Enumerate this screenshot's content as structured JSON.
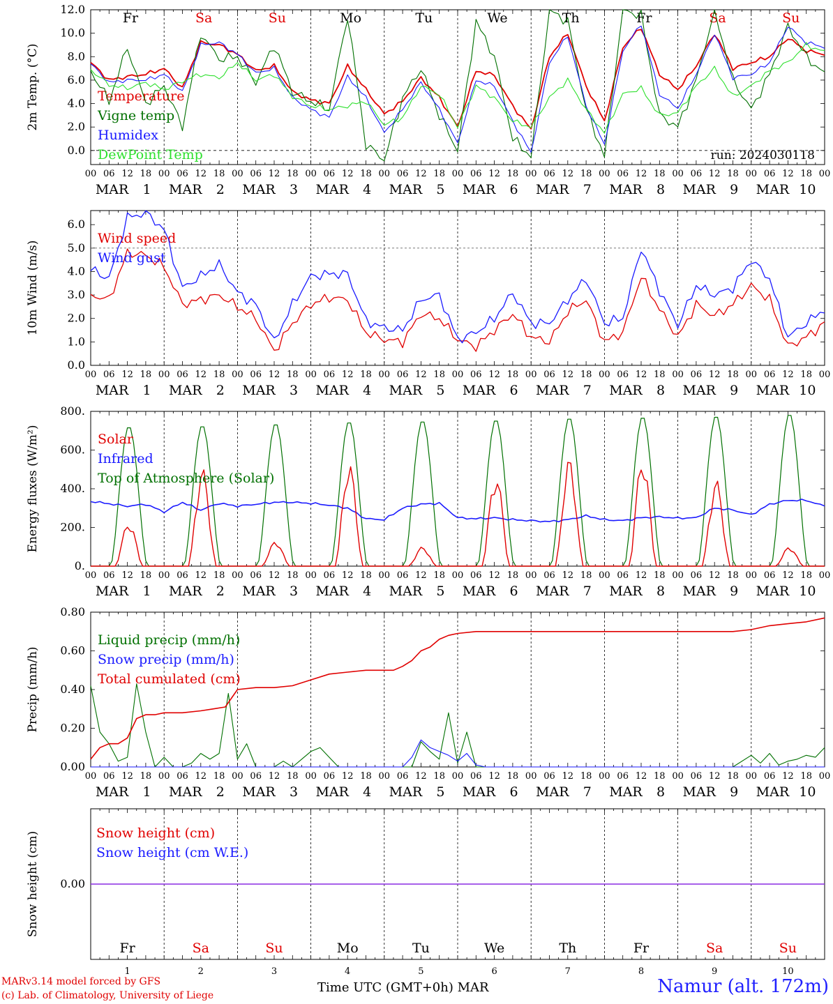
{
  "chart_data": [
    {
      "type": "line",
      "ylabel": "2m Temp. (°C)",
      "ylim": [
        -1.2,
        12.0
      ],
      "yticks": [
        "12.0",
        "10.0",
        "8.0",
        "6.0",
        "4.0",
        "2.0",
        "0.0"
      ],
      "grid": "vertical dashed day lines",
      "legend": "top-left",
      "annotation": "run: 2024030118",
      "day_labels": [
        {
          "label": "Fr",
          "color": "#000000"
        },
        {
          "label": "Sa",
          "color": "#e00000"
        },
        {
          "label": "Su",
          "color": "#e00000"
        },
        {
          "label": "Mo",
          "color": "#000000"
        },
        {
          "label": "Tu",
          "color": "#000000"
        },
        {
          "label": "We",
          "color": "#000000"
        },
        {
          "label": "Th",
          "color": "#000000"
        },
        {
          "label": "Fr",
          "color": "#000000"
        },
        {
          "label": "Sa",
          "color": "#e00000"
        },
        {
          "label": "Su",
          "color": "#e00000"
        }
      ],
      "x_hours": [
        0,
        6,
        12,
        18,
        24,
        30,
        36,
        42,
        48,
        54,
        60,
        66,
        72,
        78,
        84,
        90,
        96,
        102,
        108,
        114,
        120,
        126,
        132,
        138,
        144,
        150,
        156,
        162,
        168,
        174,
        180,
        186,
        192,
        198,
        204,
        210,
        216,
        222,
        228,
        234,
        240
      ],
      "series": [
        {
          "name": "Temperature",
          "color": "#e00000",
          "values": [
            7.5,
            6.0,
            6.3,
            6.5,
            7.0,
            5.3,
            9.2,
            9.0,
            8.2,
            6.8,
            7.2,
            5.0,
            4.3,
            4.0,
            7.2,
            5.2,
            3.1,
            4.2,
            6.2,
            4.5,
            2.0,
            6.8,
            6.4,
            3.8,
            1.8,
            8.0,
            10.0,
            5.5,
            2.5,
            8.8,
            10.5,
            6.5,
            5.2,
            7.2,
            10.0,
            7.0,
            7.5,
            8.0,
            9.6,
            8.5,
            8.2
          ]
        },
        {
          "name": "Vigne temp",
          "color": "#007000",
          "values": [
            6.8,
            4.2,
            8.8,
            4.0,
            5.5,
            2.0,
            10.0,
            7.8,
            8.0,
            5.8,
            9.0,
            5.0,
            4.2,
            3.5,
            11.5,
            0.5,
            -0.8,
            4.5,
            7.0,
            3.0,
            0.0,
            11.0,
            8.0,
            1.0,
            -0.5,
            12.0,
            11.0,
            3.5,
            -0.5,
            12.0,
            11.5,
            3.0,
            2.0,
            6.0,
            12.0,
            6.0,
            3.5,
            6.5,
            10.6,
            8.0,
            6.5
          ]
        },
        {
          "name": "Humidex",
          "color": "#1a1aff",
          "values": [
            7.4,
            5.8,
            6.0,
            6.0,
            6.5,
            5.0,
            9.0,
            9.2,
            8.2,
            6.6,
            7.0,
            4.5,
            3.5,
            2.8,
            6.3,
            4.5,
            1.5,
            3.5,
            5.8,
            3.5,
            0.6,
            6.0,
            5.5,
            2.5,
            -0.2,
            7.5,
            9.8,
            3.8,
            0.5,
            8.5,
            10.8,
            4.8,
            3.6,
            6.5,
            10.0,
            6.2,
            6.5,
            7.5,
            10.6,
            9.2,
            8.8
          ]
        },
        {
          "name": "DewPoint Temp",
          "color": "#2ee02e",
          "values": [
            6.9,
            5.6,
            5.3,
            5.8,
            5.2,
            5.9,
            6.5,
            6.2,
            7.5,
            6.0,
            6.5,
            4.6,
            3.8,
            3.5,
            3.8,
            4.2,
            2.2,
            2.8,
            5.5,
            4.8,
            2.0,
            5.5,
            4.5,
            2.5,
            2.0,
            4.5,
            6.0,
            3.5,
            1.5,
            4.8,
            5.3,
            3.0,
            3.2,
            5.5,
            7.0,
            4.6,
            5.5,
            6.8,
            7.5,
            9.0,
            8.4
          ]
        }
      ]
    },
    {
      "type": "line",
      "ylabel": "10m Wind (m/s)",
      "ylim": [
        0.0,
        6.6
      ],
      "yticks": [
        "6.0",
        "5.0",
        "4.0",
        "3.0",
        "2.0",
        "1.0",
        "0.0"
      ],
      "legend": "top-left",
      "reference_line": 5.0,
      "x_hours": [
        0,
        6,
        12,
        18,
        24,
        30,
        36,
        42,
        48,
        54,
        60,
        66,
        72,
        78,
        84,
        90,
        96,
        102,
        108,
        114,
        120,
        126,
        132,
        138,
        144,
        150,
        156,
        162,
        168,
        174,
        180,
        186,
        192,
        198,
        204,
        210,
        216,
        222,
        228,
        234,
        240
      ],
      "series": [
        {
          "name": "Wind speed",
          "color": "#e00000",
          "values": [
            3.0,
            2.8,
            4.8,
            4.7,
            4.2,
            2.6,
            2.8,
            3.0,
            2.5,
            2.0,
            0.6,
            1.8,
            2.6,
            2.9,
            2.8,
            1.4,
            1.1,
            1.0,
            2.2,
            2.0,
            1.1,
            0.8,
            1.5,
            2.2,
            1.2,
            1.0,
            2.3,
            2.8,
            1.0,
            1.4,
            3.8,
            2.4,
            1.2,
            2.6,
            2.1,
            2.6,
            3.4,
            2.8,
            0.8,
            1.2,
            1.8
          ]
        },
        {
          "name": "Wind gust",
          "color": "#1a1aff",
          "values": [
            4.1,
            3.7,
            6.3,
            6.5,
            5.8,
            3.3,
            3.8,
            4.3,
            3.1,
            2.6,
            1.0,
            2.6,
            3.8,
            3.9,
            3.9,
            1.9,
            1.6,
            1.5,
            2.8,
            3.0,
            1.1,
            1.4,
            2.0,
            3.1,
            1.8,
            1.8,
            2.8,
            3.7,
            1.8,
            2.0,
            5.0,
            3.2,
            1.7,
            3.4,
            3.0,
            3.3,
            4.5,
            3.7,
            1.2,
            1.8,
            2.4
          ]
        }
      ]
    },
    {
      "type": "line",
      "ylabel": "Energy fluxes (W/m²)",
      "ylim": [
        0,
        800
      ],
      "yticks": [
        "800.",
        "600.",
        "400.",
        "200.",
        "0."
      ],
      "legend": "top-left",
      "series": [
        {
          "name": "Solar",
          "color": "#e00000",
          "peaks": [
            230,
            510,
            130,
            540,
            100,
            480,
            560,
            570,
            450,
            100
          ]
        },
        {
          "name": "Infrared",
          "color": "#1a1aff",
          "x_hours": [
            0,
            12,
            18,
            24,
            30,
            36,
            42,
            48,
            54,
            60,
            66,
            72,
            78,
            84,
            90,
            96,
            102,
            108,
            114,
            120,
            126,
            132,
            138,
            144,
            150,
            156,
            162,
            168,
            174,
            180,
            186,
            192,
            198,
            204,
            210,
            216,
            222,
            228,
            234,
            240
          ],
          "values": [
            335,
            310,
            320,
            280,
            330,
            290,
            325,
            310,
            320,
            330,
            330,
            325,
            315,
            300,
            245,
            240,
            300,
            320,
            325,
            250,
            245,
            250,
            240,
            235,
            230,
            240,
            260,
            240,
            235,
            250,
            255,
            248,
            250,
            300,
            290,
            265,
            320,
            340,
            340,
            310
          ]
        },
        {
          "name": "Top of Atmosphere (Solar)",
          "color": "#007000",
          "peaks": [
            725,
            730,
            740,
            750,
            755,
            760,
            770,
            775,
            780,
            790
          ]
        }
      ]
    },
    {
      "type": "line",
      "ylabel": "Precip (mm/h)",
      "ylim": [
        0.0,
        0.8
      ],
      "yticks": [
        "0.80",
        "0.60",
        "0.40",
        "0.20",
        "0.00"
      ],
      "legend": "top-left",
      "series": [
        {
          "name": "Liquid precip (mm/h)",
          "color": "#007000",
          "x_hours": [
            0,
            3,
            6,
            9,
            12,
            15,
            18,
            21,
            24,
            27,
            30,
            33,
            36,
            39,
            42,
            45,
            48,
            51,
            54,
            57,
            60,
            63,
            66,
            69,
            72,
            75,
            78,
            81,
            84,
            87,
            90,
            93,
            96,
            99,
            102,
            105,
            108,
            111,
            114,
            117,
            120,
            123,
            126,
            129,
            132,
            180,
            204,
            210,
            216,
            219,
            222,
            225,
            228,
            231,
            234,
            237,
            240
          ],
          "values": [
            0.42,
            0.18,
            0.12,
            0.03,
            0.05,
            0.43,
            0.18,
            0.0,
            0.05,
            0.0,
            0.0,
            0.02,
            0.07,
            0.04,
            0.07,
            0.38,
            0.04,
            0.12,
            0.0,
            0.0,
            0.0,
            0.03,
            0.0,
            0.04,
            0.08,
            0.1,
            0.05,
            0.0,
            0.0,
            0.0,
            0.0,
            0.0,
            0.0,
            0.0,
            0.0,
            0.0,
            0.13,
            0.08,
            0.04,
            0.28,
            0.02,
            0.18,
            0.0,
            0.0,
            0.0,
            0.0,
            0.0,
            0.0,
            0.06,
            0.02,
            0.07,
            0.01,
            0.03,
            0.04,
            0.06,
            0.05,
            0.1
          ]
        },
        {
          "name": "Snow precip (mm/h)",
          "color": "#1a1aff",
          "x_hours": [
            0,
            96,
            102,
            105,
            108,
            111,
            114,
            117,
            120,
            123,
            126,
            129,
            240
          ],
          "values": [
            0.0,
            0.0,
            0.0,
            0.05,
            0.14,
            0.1,
            0.08,
            0.06,
            0.03,
            0.07,
            0.01,
            0.0,
            0.0
          ]
        },
        {
          "name": "Total cumulated (cm)",
          "color": "#e00000",
          "x_hours": [
            0,
            3,
            6,
            9,
            12,
            15,
            18,
            21,
            24,
            30,
            36,
            40,
            44,
            48,
            54,
            60,
            66,
            72,
            78,
            84,
            90,
            96,
            99,
            102,
            105,
            108,
            111,
            114,
            117,
            120,
            126,
            132,
            180,
            204,
            210,
            216,
            222,
            228,
            234,
            240
          ],
          "values": [
            0.04,
            0.1,
            0.12,
            0.12,
            0.15,
            0.25,
            0.27,
            0.27,
            0.28,
            0.28,
            0.29,
            0.3,
            0.31,
            0.4,
            0.41,
            0.41,
            0.42,
            0.45,
            0.48,
            0.49,
            0.5,
            0.5,
            0.5,
            0.52,
            0.55,
            0.6,
            0.62,
            0.66,
            0.68,
            0.69,
            0.7,
            0.7,
            0.7,
            0.7,
            0.7,
            0.71,
            0.73,
            0.74,
            0.75,
            0.77
          ]
        }
      ]
    },
    {
      "type": "line",
      "ylabel": "Snow height (cm)",
      "yticks": [
        "0.00"
      ],
      "legend": "top-left",
      "series": [
        {
          "name": "Snow height (cm)",
          "color": "#e00000",
          "values": [
            0.0,
            0.0
          ]
        },
        {
          "name": "Snow height (cm W.E.)",
          "color": "#1a1aff",
          "values": [
            0.0,
            0.0
          ]
        }
      ],
      "day_labels": [
        "Fr",
        "Sa",
        "Su",
        "Mo",
        "Tu",
        "We",
        "Th",
        "Fr",
        "Sa",
        "Su"
      ],
      "day_numbers": [
        "1",
        "2",
        "3",
        "4",
        "5",
        "6",
        "7",
        "8",
        "9",
        "10"
      ]
    }
  ],
  "axis_common": {
    "hour_ticks": [
      "00",
      "06",
      "12",
      "18"
    ],
    "end_tick": "00",
    "month_label": "MAR",
    "day_numbers": [
      "1",
      "2",
      "3",
      "4",
      "5",
      "6",
      "7",
      "8",
      "9",
      "10"
    ]
  },
  "footer": {
    "credit_model": "MARv3.14 model forced by GFS",
    "credit_lab": "(c) Lab. of Climatology, University of Liege",
    "xaxis_label": "Time UTC (GMT+0h) MAR",
    "station": "Namur (alt. 172m)"
  }
}
